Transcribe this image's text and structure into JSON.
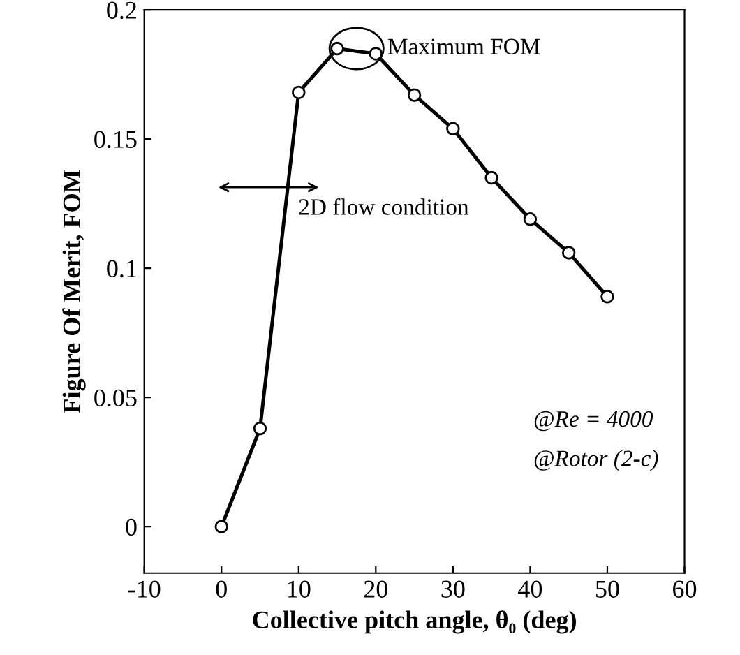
{
  "chart_data": {
    "type": "line",
    "xlabel": "Collective pitch angle, θ₀ (deg)",
    "ylabel": "Figure Of Merit, FOM",
    "x": [
      0,
      5,
      10,
      15,
      20,
      25,
      30,
      35,
      40,
      45,
      50
    ],
    "series": [
      {
        "color": "#000000",
        "values": [
          0,
          0.038,
          0.168,
          0.185,
          0.183,
          0.167,
          0.154,
          0.135,
          0.119,
          0.106,
          0.089
        ]
      }
    ],
    "xlim": [
      -10,
      60
    ],
    "xticks": [
      -10,
      0,
      10,
      20,
      30,
      40,
      50,
      60
    ],
    "ylim": [
      -0.018,
      0.2
    ],
    "yticks": [
      0,
      0.05,
      0.1,
      0.15,
      0.2
    ],
    "marker": "circle",
    "line_style": "solid",
    "grid": false,
    "annotations": [
      {
        "text": "Maximum FOM",
        "x": 17.5,
        "y": 0.185
      },
      "2D flow condition",
      "@Re = 4000",
      "@Rotor (2-c)"
    ]
  }
}
